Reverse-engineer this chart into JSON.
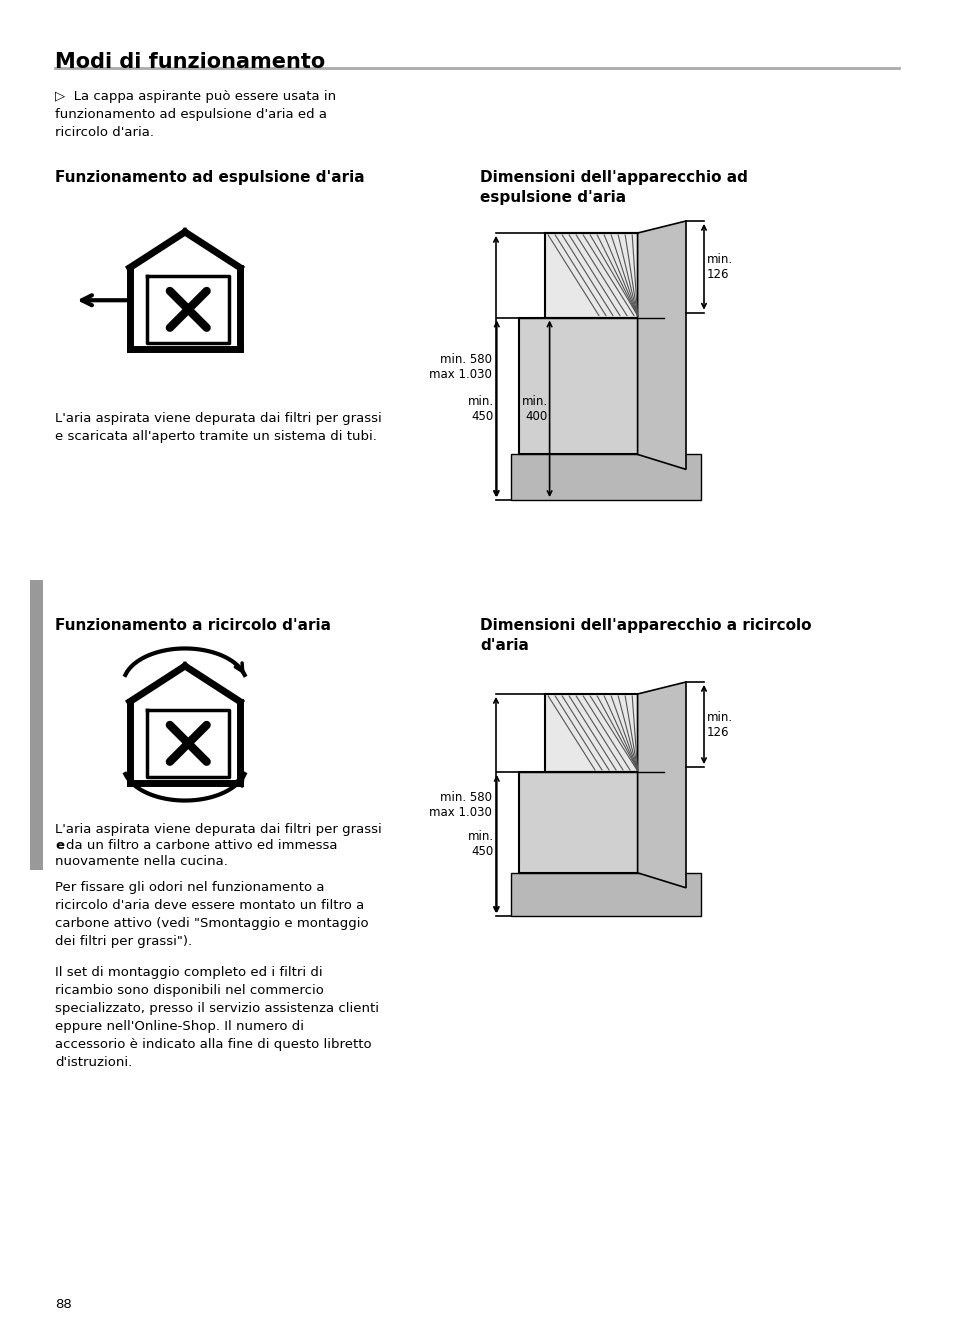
{
  "page_title": "Modi di funzionamento",
  "background_color": "#ffffff",
  "text_color": "#000000",
  "gray_color": "#aaaaaa",
  "intro_text": "▷  La cappa aspirante può essere usata in\nfunzionamento ad espulsione d'aria ed a\nricircolo d'aria.",
  "section1_left_title": "Funzionamento ad espulsione d'aria",
  "section1_right_title": "Dimensioni dell'apparecchio ad\nespulsione d'aria",
  "section1_left_body": "L'aria aspirata viene depurata dai filtri per grassi\ne scaricata all'aperto tramite un sistema di tubi.",
  "section2_left_title": "Funzionamento a ricircolo d'aria",
  "section2_right_title": "Dimensioni dell'apparecchio a ricircolo\nd'aria",
  "section2_left_body2": "Per fissare gli odori nel funzionamento a\nricircolo d'aria deve essere montato un filtro a\ncarbone attivo (vedi \"Smontaggio e montaggio\ndei filtri per grassi\").",
  "section2_left_body3": "Il set di montaggio completo ed i filtri di\nricambio sono disponibili nel commercio\nspecializzato, presso il servizio assistenza clienti\neppure nell'Online-Shop. Il numero di\naccessorio è indicato alla fine di questo libretto\nd'istruzioni.",
  "page_number": "88",
  "dim1_label1": "min. 580\nmax 1.030",
  "dim1_label2": "min.\n126",
  "dim1_label3": "min.\n450",
  "dim1_label4": "min.\n400",
  "dim2_label1": "min. 580\nmax 1.030",
  "dim2_label2": "min.\n126",
  "dim2_label3": "min.\n450"
}
